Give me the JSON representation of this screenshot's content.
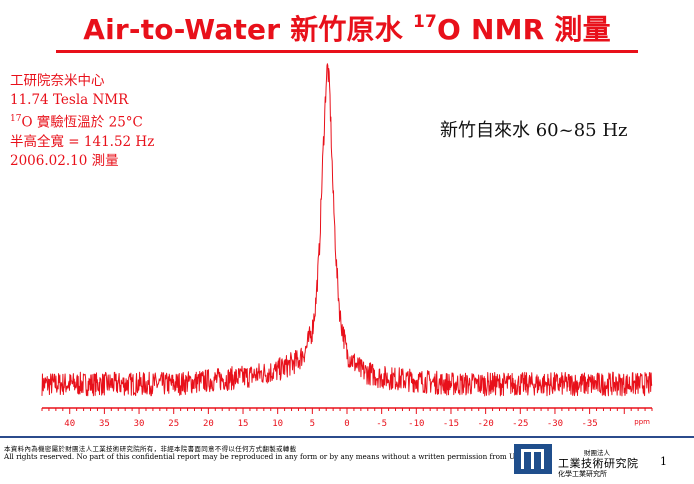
{
  "header": {
    "title_main": "Air-to-Water 新竹原水 ",
    "title_sup": "17",
    "title_rest": "O NMR 測量"
  },
  "info": {
    "line1": "工研院奈米中心",
    "line2": "11.74 Tesla NMR",
    "line3_sup": "17",
    "line3_rest": "O 實驗恆溫於 25°C",
    "line4": "半高全寬 = 141.52 Hz",
    "line5": "2006.02.10 測量"
  },
  "sample_label": "新竹自來水 60~85 Hz",
  "chart_data": {
    "type": "line",
    "series": [
      {
        "x": [
          44,
          40,
          35,
          30,
          25,
          20,
          15,
          10,
          7,
          6,
          5,
          4.5,
          4,
          3.5,
          3,
          2.8,
          2.5,
          2,
          1.5,
          1,
          0,
          -2,
          -5,
          -10,
          -15,
          -20,
          -25,
          -30,
          -35,
          -40,
          -44
        ],
        "y": [
          0.06,
          0.06,
          0.06,
          0.06,
          0.06,
          0.07,
          0.08,
          0.1,
          0.13,
          0.16,
          0.22,
          0.3,
          0.45,
          0.72,
          0.96,
          1.0,
          0.93,
          0.62,
          0.4,
          0.26,
          0.15,
          0.1,
          0.08,
          0.07,
          0.06,
          0.06,
          0.06,
          0.06,
          0.06,
          0.06,
          0.06
        ]
      }
    ],
    "xlim": [
      44,
      -44
    ],
    "x_ticks": [
      40,
      35,
      30,
      25,
      20,
      15,
      10,
      5,
      0,
      -5,
      -10,
      -15,
      -20,
      -25,
      -30,
      -35
    ],
    "tick_labels": [
      "40",
      "35",
      "30",
      "25",
      "20",
      "15",
      "10",
      "5",
      "0",
      "-5",
      "-10",
      "-15",
      "-20",
      "-25",
      "-30",
      "-35"
    ],
    "xlabel": "ppm",
    "color": "#e8101a",
    "grid": false
  },
  "footer": {
    "confidential_zh": "本資料內為機密屬於財團法人工業技術研究院所有，非經本院書面同意不得以任何方式翻製或轉載",
    "copyright_en": "All rights reserved.  No part of this confidential report may be reproduced in any form or  by any means without a written permission from UCL ITRI.",
    "org_small": "財團法人",
    "org_main": "工業技術研究院",
    "org_sub": "化學工業研究所",
    "page_number": "1"
  },
  "colors": {
    "accent": "#e8101a",
    "footer_rule": "#2b4b8c",
    "logo": "#1f4e8c"
  }
}
